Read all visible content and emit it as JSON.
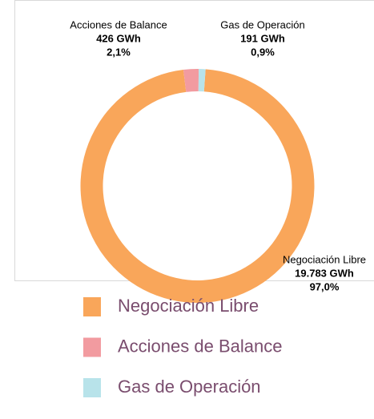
{
  "chart_data": {
    "type": "donut",
    "categories": [
      "Negociación Libre",
      "Acciones de Balance",
      "Gas de Operación"
    ],
    "values": [
      19783,
      426,
      191
    ],
    "value_labels": [
      "19.783 GWh",
      "426 GWh",
      "191 GWh"
    ],
    "shares": [
      97.0,
      2.1,
      0.9
    ],
    "share_labels": [
      "97,0%",
      "2,1%",
      "0,9%"
    ],
    "colors": [
      "#f9a65a",
      "#f29ba0",
      "#b8e3ea"
    ],
    "legend": "bottom"
  }
}
